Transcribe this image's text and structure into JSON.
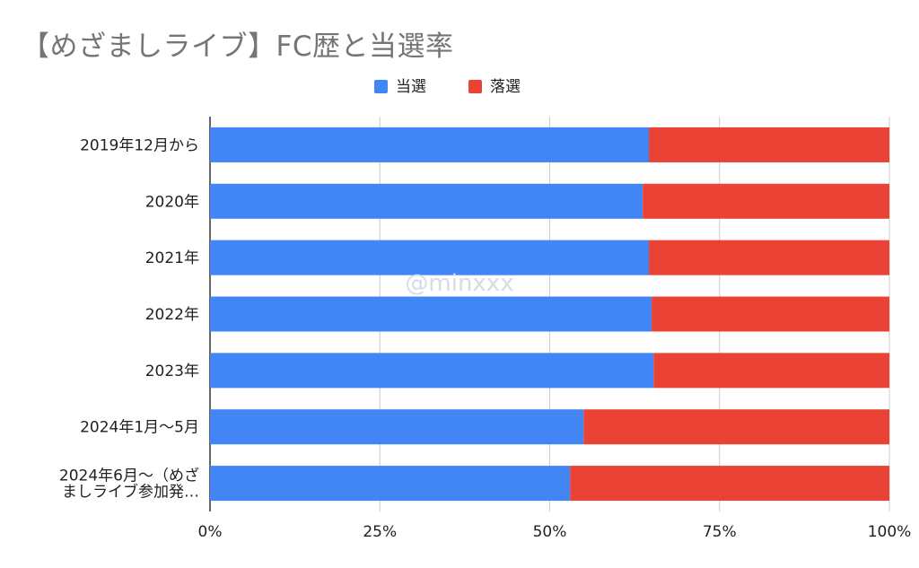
{
  "chart_data": {
    "type": "bar",
    "orientation": "horizontal",
    "stacked": "percent",
    "title": "【めざましライブ】FC歴と当選率",
    "categories": [
      [
        "2019年12月から"
      ],
      [
        "2020年"
      ],
      [
        "2021年"
      ],
      [
        "2022年"
      ],
      [
        "2023年"
      ],
      [
        "2024年1月〜5月"
      ],
      [
        "2024年6月〜（めざ",
        "ましライブ参加発…"
      ]
    ],
    "series": [
      {
        "name": "当選",
        "color": "#4285f4",
        "values": [
          64.6,
          63.7,
          64.6,
          65.0,
          65.3,
          55.0,
          53.0
        ]
      },
      {
        "name": "落選",
        "color": "#ea4335",
        "values": [
          35.4,
          36.3,
          35.4,
          35.0,
          34.7,
          45.0,
          47.0
        ]
      }
    ],
    "x_ticks": [
      "0%",
      "25%",
      "50%",
      "75%",
      "100%"
    ],
    "xlim": [
      0,
      100
    ],
    "grid": true,
    "legend_position": "top-center",
    "watermark": "@minxxx"
  }
}
